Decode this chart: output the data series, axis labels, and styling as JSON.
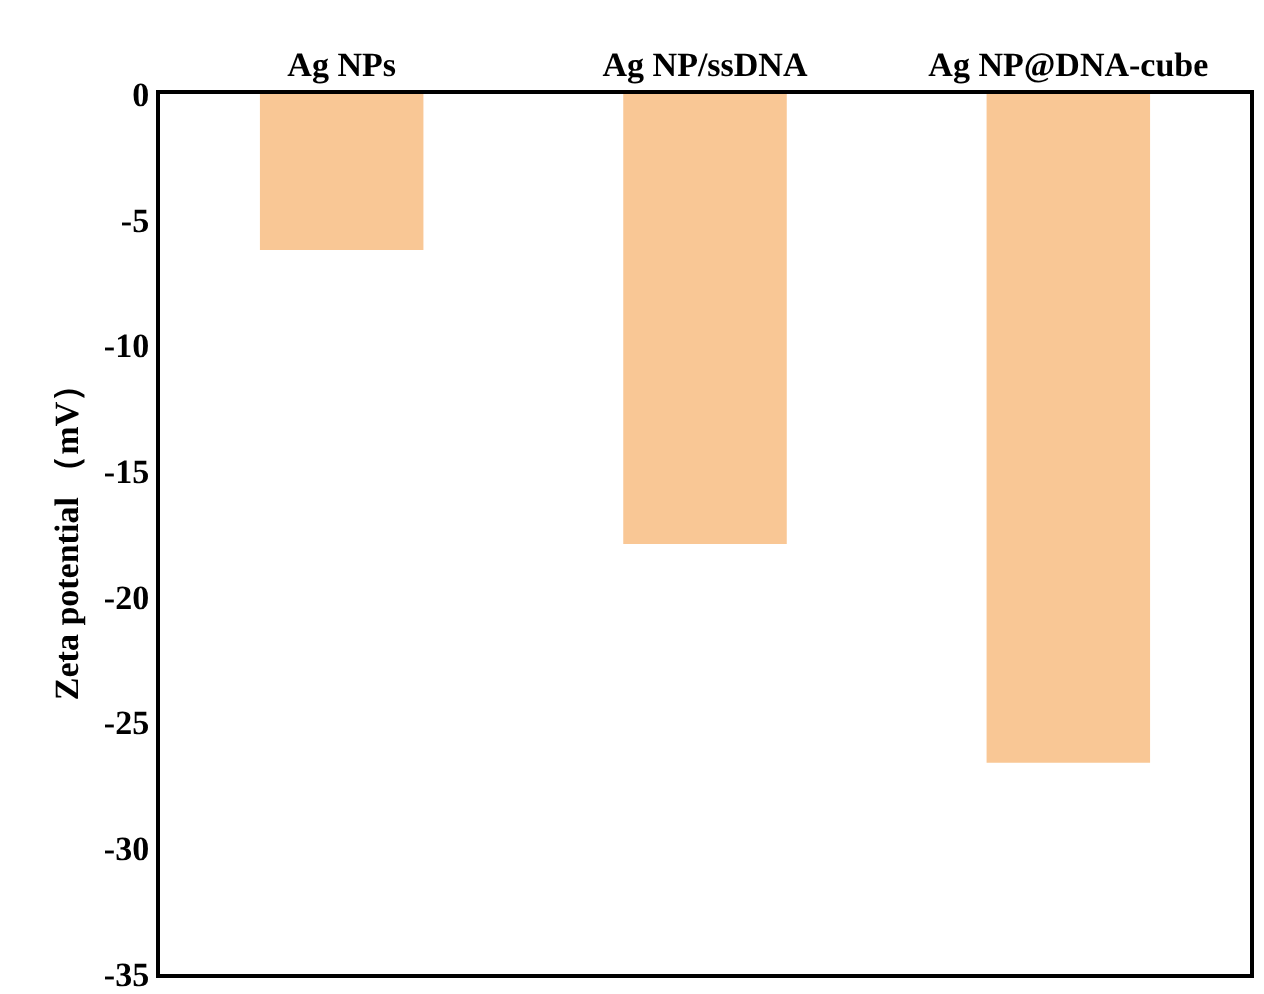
{
  "chart_data": {
    "type": "bar",
    "categories": [
      "Ag NPs",
      "Ag NP/ssDNA",
      "Ag NP@DNA-cube"
    ],
    "values": [
      -6.2,
      -17.9,
      -26.6
    ],
    "color": "#f9c795",
    "ylabel": "Zeta potential （mV）",
    "ylim": [
      -35,
      0
    ],
    "yticks": [
      0,
      -5,
      -10,
      -15,
      -20,
      -25,
      -30,
      -35
    ],
    "grid": false
  }
}
